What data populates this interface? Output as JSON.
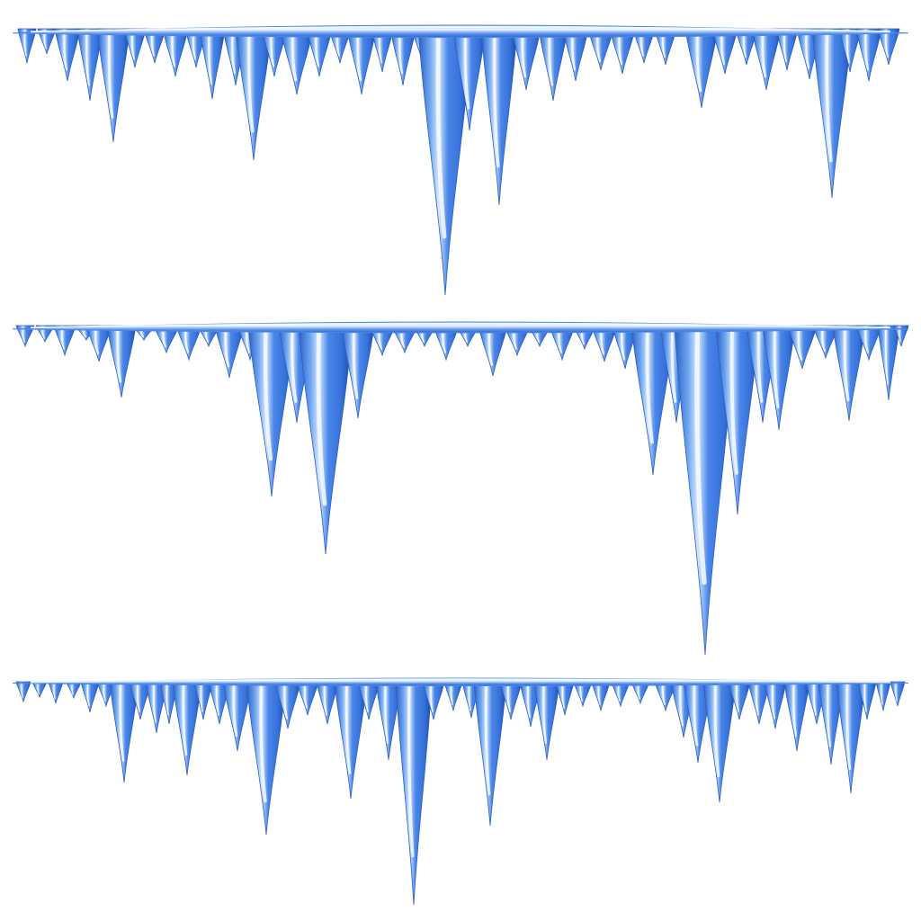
{
  "image": {
    "subject": "icicles",
    "background_color": "#ffffff",
    "colors": {
      "ice_light": "#cfe4ff",
      "ice_mid": "#6fa6f0",
      "ice_main": "#4a86e8",
      "ice_dark": "#2a5fc4",
      "ice_deep": "#1c46a0",
      "highlight": "#f4f9ff"
    },
    "rows": [
      {
        "name": "icicle-row-top"
      },
      {
        "name": "icicle-row-middle"
      },
      {
        "name": "icicle-row-bottom"
      }
    ]
  }
}
